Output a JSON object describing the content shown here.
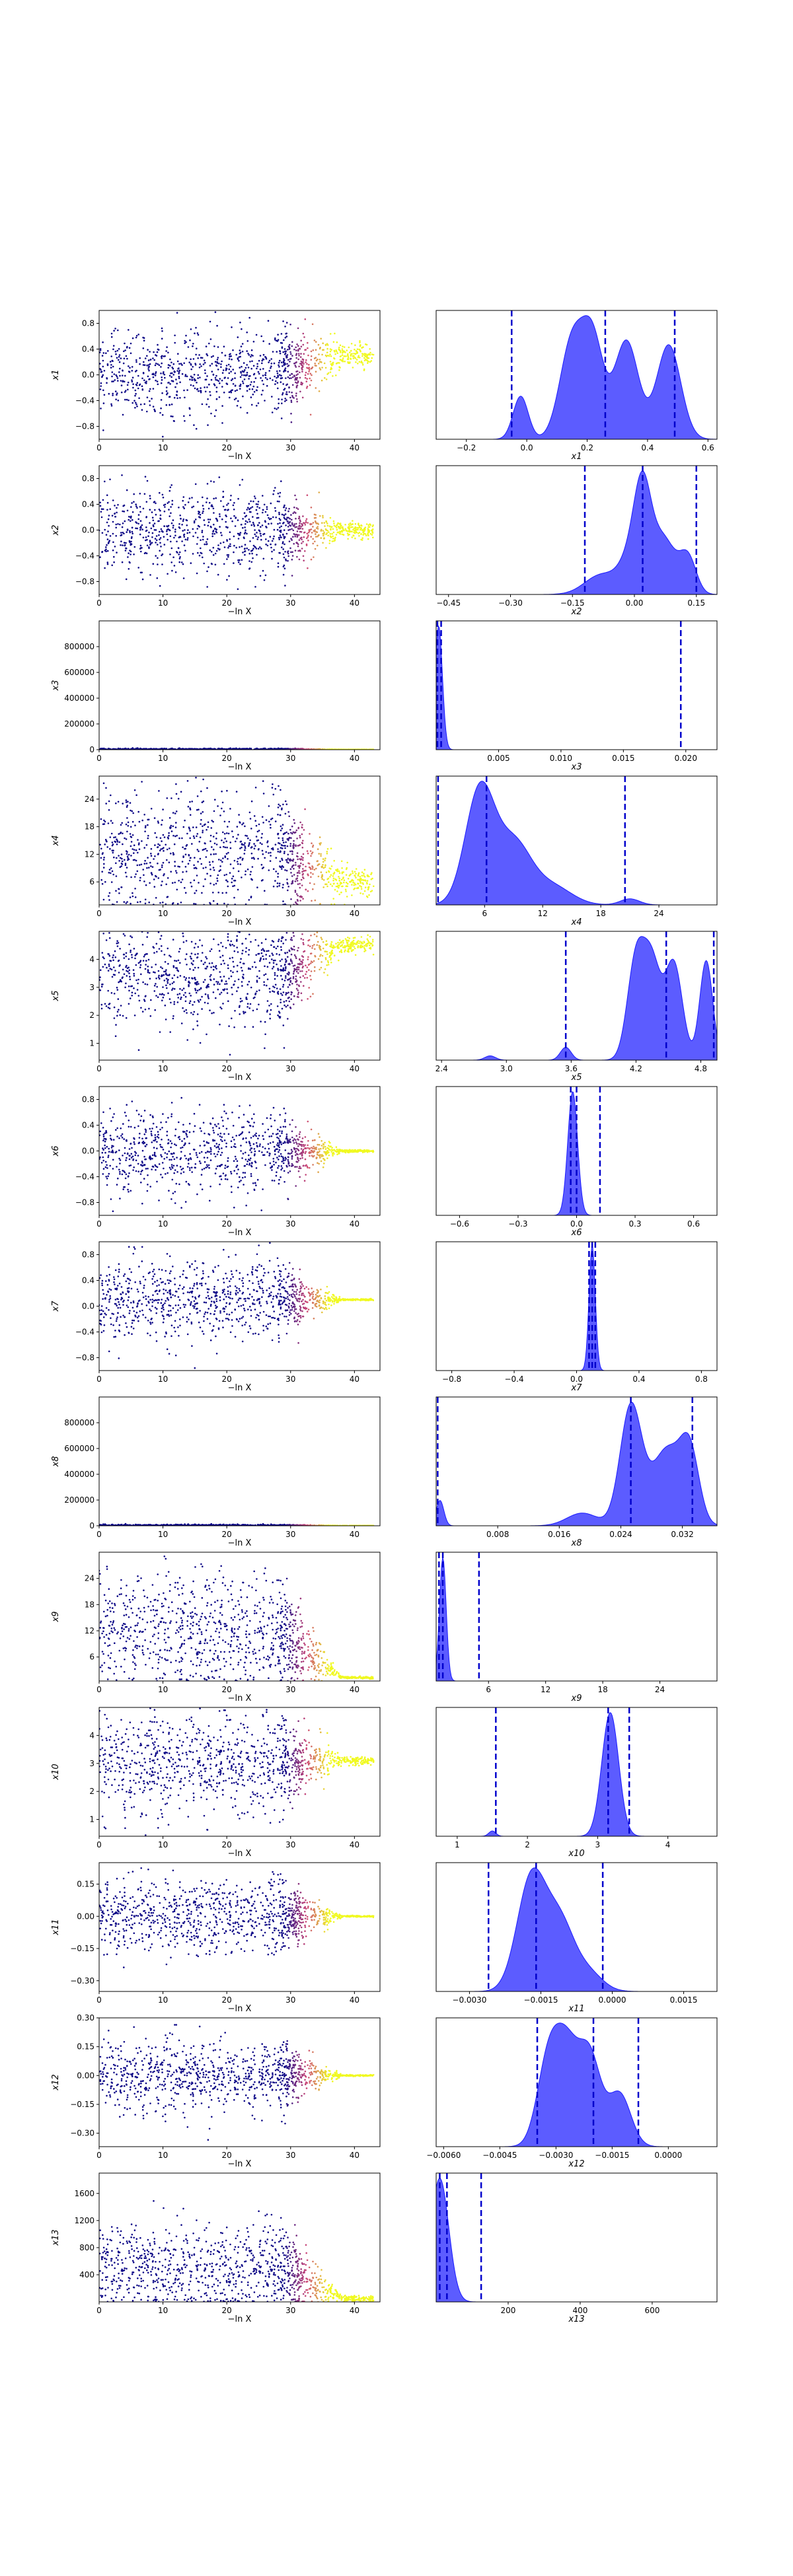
{
  "chart_data": [
    {
      "type": "scatter",
      "panel": "trace",
      "row": 1,
      "ylabel": "x1",
      "xlabel": "−ln X",
      "xlim": [
        0,
        44
      ],
      "ylim": [
        -1.0,
        1.0
      ],
      "xticks": [
        0,
        10,
        20,
        30,
        40
      ],
      "yticks": [
        -0.8,
        -0.4,
        0.0,
        0.4,
        0.8
      ],
      "ytick_labels": [
        "−0.8",
        "−0.4",
        "0.0",
        "0.4",
        "0.8"
      ],
      "profile": {
        "center": 0.05,
        "slope": 0.0,
        "spread": 0.55,
        "final": 0.3,
        "final_spread": 0.15
      }
    },
    {
      "type": "area",
      "panel": "marginal",
      "row": 1,
      "xlabel": "x1",
      "xlim": [
        -0.3,
        0.63
      ],
      "xticks": [
        -0.2,
        0.0,
        0.2,
        0.4,
        0.6
      ],
      "xtick_labels": [
        "−0.2",
        "0.0",
        "0.2",
        "0.4",
        "0.6"
      ],
      "quantiles": [
        -0.05,
        0.26,
        0.49
      ],
      "peaks": [
        {
          "x": -0.02,
          "h": 0.42,
          "w": 0.025
        },
        {
          "x": 0.15,
          "h": 0.95,
          "w": 0.04
        },
        {
          "x": 0.22,
          "h": 0.9,
          "w": 0.035
        },
        {
          "x": 0.33,
          "h": 0.96,
          "w": 0.04
        },
        {
          "x": 0.47,
          "h": 0.92,
          "w": 0.04
        }
      ]
    },
    {
      "type": "scatter",
      "panel": "trace",
      "row": 2,
      "ylabel": "x2",
      "xlabel": "−ln X",
      "xlim": [
        0,
        44
      ],
      "ylim": [
        -1.0,
        1.0
      ],
      "xticks": [
        0,
        10,
        20,
        30,
        40
      ],
      "yticks": [
        -0.8,
        -0.4,
        0.0,
        0.4,
        0.8
      ],
      "ytick_labels": [
        "−0.8",
        "−0.4",
        "0.0",
        "0.4",
        "0.8"
      ],
      "profile": {
        "center": 0.0,
        "slope": 0.0,
        "spread": 0.55,
        "final": 0.0,
        "final_spread": 0.1
      }
    },
    {
      "type": "area",
      "panel": "marginal",
      "row": 2,
      "xlabel": "x2",
      "xlim": [
        -0.48,
        0.2
      ],
      "xticks": [
        -0.45,
        -0.3,
        -0.15,
        0.0,
        0.15
      ],
      "xtick_labels": [
        "−0.45",
        "−0.30",
        "−0.15",
        "0.00",
        "0.15"
      ],
      "quantiles": [
        -0.12,
        0.02,
        0.15
      ],
      "peaks": [
        {
          "x": -0.08,
          "h": 0.25,
          "w": 0.04
        },
        {
          "x": 0.0,
          "h": 0.55,
          "w": 0.03
        },
        {
          "x": 0.02,
          "h": 0.95,
          "w": 0.02
        },
        {
          "x": 0.07,
          "h": 0.7,
          "w": 0.03
        },
        {
          "x": 0.13,
          "h": 0.45,
          "w": 0.02
        }
      ]
    },
    {
      "type": "scatter",
      "panel": "trace",
      "row": 3,
      "ylabel": "x3",
      "xlabel": "−ln X",
      "xlim": [
        0,
        44
      ],
      "ylim": [
        0,
        1000000
      ],
      "xticks": [
        0,
        10,
        20,
        30,
        40
      ],
      "yticks": [
        0,
        200000,
        400000,
        600000,
        800000
      ],
      "ytick_labels": [
        "0",
        "200000",
        "400000",
        "600000",
        "800000"
      ],
      "profile": {
        "center": 3000,
        "slope": 0.0,
        "spread": 6000,
        "final": 1000,
        "final_spread": 400
      }
    },
    {
      "type": "area",
      "panel": "marginal",
      "row": 3,
      "xlabel": "x3",
      "xlim": [
        0,
        0.0225
      ],
      "xticks": [
        0.005,
        0.01,
        0.015,
        0.02
      ],
      "xtick_labels": [
        "0.005",
        "0.010",
        "0.015",
        "0.020"
      ],
      "quantiles": [
        0.0001,
        0.0004,
        0.0196
      ],
      "peaks": [
        {
          "x": 0.0002,
          "h": 0.95,
          "w": 0.0003
        }
      ]
    },
    {
      "type": "scatter",
      "panel": "trace",
      "row": 4,
      "ylabel": "x4",
      "xlabel": "−ln X",
      "xlim": [
        0,
        44
      ],
      "ylim": [
        1,
        29
      ],
      "xticks": [
        0,
        10,
        20,
        30,
        40
      ],
      "yticks": [
        6,
        12,
        18,
        24
      ],
      "ytick_labels": [
        "6",
        "12",
        "18",
        "24"
      ],
      "profile": {
        "center": 13,
        "slope": 0.0,
        "spread": 11,
        "final": 6,
        "final_spread": 2.5
      }
    },
    {
      "type": "area",
      "panel": "marginal",
      "row": 4,
      "xlabel": "x4",
      "xlim": [
        1,
        30
      ],
      "xticks": [
        6,
        12,
        18,
        24
      ],
      "xtick_labels": [
        "6",
        "12",
        "18",
        "24"
      ],
      "quantiles": [
        1.2,
        6.2,
        20.5
      ],
      "peaks": [
        {
          "x": 5.5,
          "h": 0.93,
          "w": 1.5
        },
        {
          "x": 9,
          "h": 0.5,
          "w": 1.8
        },
        {
          "x": 13,
          "h": 0.15,
          "w": 2.0
        },
        {
          "x": 21,
          "h": 0.05,
          "w": 1.0
        }
      ]
    },
    {
      "type": "scatter",
      "panel": "trace",
      "row": 5,
      "ylabel": "x5",
      "xlabel": "−ln X",
      "xlim": [
        0,
        44
      ],
      "ylim": [
        0.4,
        5.0
      ],
      "xticks": [
        0,
        10,
        20,
        30,
        40
      ],
      "yticks": [
        1,
        2,
        3,
        4
      ],
      "ytick_labels": [
        "1",
        "2",
        "3",
        "4"
      ],
      "profile": {
        "center": 3.4,
        "slope": 0.0,
        "spread": 1.5,
        "final": 4.5,
        "final_spread": 0.25
      }
    },
    {
      "type": "area",
      "panel": "marginal",
      "row": 5,
      "xlabel": "x5",
      "xlim": [
        2.35,
        4.95
      ],
      "xticks": [
        2.4,
        3.0,
        3.6,
        4.2,
        4.8
      ],
      "xtick_labels": [
        "2.4",
        "3.0",
        "3.6",
        "4.2",
        "4.8"
      ],
      "quantiles": [
        3.55,
        4.48,
        4.92
      ],
      "peaks": [
        {
          "x": 2.85,
          "h": 0.04,
          "w": 0.05
        },
        {
          "x": 3.55,
          "h": 0.12,
          "w": 0.05
        },
        {
          "x": 4.2,
          "h": 0.93,
          "w": 0.08
        },
        {
          "x": 4.35,
          "h": 0.85,
          "w": 0.08
        },
        {
          "x": 4.55,
          "h": 0.9,
          "w": 0.08
        },
        {
          "x": 4.85,
          "h": 0.93,
          "w": 0.06
        }
      ]
    },
    {
      "type": "scatter",
      "panel": "trace",
      "row": 6,
      "ylabel": "x6",
      "xlabel": "−ln X",
      "xlim": [
        0,
        44
      ],
      "ylim": [
        -1.0,
        1.0
      ],
      "xticks": [
        0,
        10,
        20,
        30,
        40
      ],
      "yticks": [
        -0.8,
        -0.4,
        0.0,
        0.4,
        0.8
      ],
      "ytick_labels": [
        "−0.8",
        "−0.4",
        "0.0",
        "0.4",
        "0.8"
      ],
      "profile": {
        "center": 0.0,
        "slope": 0.0,
        "spread": 0.5,
        "final": 0.0,
        "final_spread": 0.015
      }
    },
    {
      "type": "area",
      "panel": "marginal",
      "row": 6,
      "xlabel": "x6",
      "xlim": [
        -0.72,
        0.72
      ],
      "xticks": [
        -0.6,
        -0.3,
        0.0,
        0.3,
        0.6
      ],
      "xtick_labels": [
        "−0.6",
        "−0.3",
        "0.0",
        "0.3",
        "0.6"
      ],
      "quantiles": [
        -0.03,
        0.0,
        0.12
      ],
      "peaks": [
        {
          "x": -0.02,
          "h": 0.94,
          "w": 0.025
        }
      ]
    },
    {
      "type": "scatter",
      "panel": "trace",
      "row": 7,
      "ylabel": "x7",
      "xlabel": "−ln X",
      "xlim": [
        0,
        44
      ],
      "ylim": [
        -1.0,
        1.0
      ],
      "xticks": [
        0,
        10,
        20,
        30,
        40
      ],
      "yticks": [
        -0.8,
        -0.4,
        0.0,
        0.4,
        0.8
      ],
      "ytick_labels": [
        "−0.8",
        "−0.4",
        "0.0",
        "0.4",
        "0.8"
      ],
      "profile": {
        "center": 0.1,
        "slope": 0.0,
        "spread": 0.5,
        "final": 0.1,
        "final_spread": 0.01
      }
    },
    {
      "type": "area",
      "panel": "marginal",
      "row": 7,
      "xlabel": "x7",
      "xlim": [
        -0.9,
        0.9
      ],
      "xticks": [
        -0.8,
        -0.4,
        0.0,
        0.4,
        0.8
      ],
      "xtick_labels": [
        "−0.8",
        "−0.4",
        "0.0",
        "0.4",
        "0.8"
      ],
      "quantiles": [
        0.08,
        0.1,
        0.12
      ],
      "peaks": [
        {
          "x": 0.1,
          "h": 0.94,
          "w": 0.02
        }
      ]
    },
    {
      "type": "scatter",
      "panel": "trace",
      "row": 8,
      "ylabel": "x8",
      "xlabel": "−ln X",
      "xlim": [
        0,
        44
      ],
      "ylim": [
        0,
        1000000
      ],
      "xticks": [
        0,
        10,
        20,
        30,
        40
      ],
      "yticks": [
        0,
        200000,
        400000,
        600000,
        800000
      ],
      "ytick_labels": [
        "0",
        "200000",
        "400000",
        "600000",
        "800000"
      ],
      "profile": {
        "center": 3000,
        "slope": 0.0,
        "spread": 6000,
        "final": 500,
        "final_spread": 200
      }
    },
    {
      "type": "area",
      "panel": "marginal",
      "row": 8,
      "xlabel": "x8",
      "xlim": [
        0,
        0.0365
      ],
      "xticks": [
        0.008,
        0.016,
        0.024,
        0.032
      ],
      "xtick_labels": [
        "0.008",
        "0.016",
        "0.024",
        "0.032"
      ],
      "quantiles": [
        0.0002,
        0.0253,
        0.0333
      ],
      "peaks": [
        {
          "x": 0.0005,
          "h": 0.2,
          "w": 0.0005
        },
        {
          "x": 0.019,
          "h": 0.1,
          "w": 0.002
        },
        {
          "x": 0.0253,
          "h": 0.93,
          "w": 0.0014
        },
        {
          "x": 0.03,
          "h": 0.6,
          "w": 0.002
        },
        {
          "x": 0.033,
          "h": 0.5,
          "w": 0.0012
        }
      ]
    },
    {
      "type": "scatter",
      "panel": "trace",
      "row": 9,
      "ylabel": "x9",
      "xlabel": "−ln X",
      "xlim": [
        0,
        44
      ],
      "ylim": [
        0.5,
        30
      ],
      "xticks": [
        0,
        10,
        20,
        30,
        40
      ],
      "yticks": [
        6,
        12,
        18,
        24
      ],
      "ytick_labels": [
        "6",
        "12",
        "18",
        "24"
      ],
      "profile": {
        "center": 12,
        "slope": 0.0,
        "spread": 11,
        "final": 1.3,
        "final_spread": 0.2
      }
    },
    {
      "type": "area",
      "panel": "marginal",
      "row": 9,
      "xlabel": "x9",
      "xlim": [
        0.5,
        30
      ],
      "xticks": [
        6,
        12,
        18,
        24
      ],
      "xtick_labels": [
        "6",
        "12",
        "18",
        "24"
      ],
      "quantiles": [
        0.8,
        1.2,
        5.0
      ],
      "peaks": [
        {
          "x": 1.2,
          "h": 0.93,
          "w": 0.35
        }
      ]
    },
    {
      "type": "scatter",
      "panel": "trace",
      "row": 10,
      "ylabel": "x10",
      "xlabel": "−ln X",
      "xlim": [
        0,
        44
      ],
      "ylim": [
        0.4,
        5.0
      ],
      "xticks": [
        0,
        10,
        20,
        30,
        40
      ],
      "yticks": [
        1,
        2,
        3,
        4
      ],
      "ytick_labels": [
        "1",
        "2",
        "3",
        "4"
      ],
      "profile": {
        "center": 3.0,
        "slope": 0.0,
        "spread": 1.6,
        "final": 3.1,
        "final_spread": 0.1
      }
    },
    {
      "type": "area",
      "panel": "marginal",
      "row": 10,
      "xlabel": "x10",
      "xlim": [
        0.7,
        4.7
      ],
      "xticks": [
        1,
        2,
        3,
        4
      ],
      "xtick_labels": [
        "1",
        "2",
        "3",
        "4"
      ],
      "quantiles": [
        1.55,
        3.15,
        3.45
      ],
      "peaks": [
        {
          "x": 1.5,
          "h": 0.04,
          "w": 0.05
        },
        {
          "x": 3.18,
          "h": 0.94,
          "w": 0.12
        }
      ]
    },
    {
      "type": "scatter",
      "panel": "trace",
      "row": 11,
      "ylabel": "x11",
      "xlabel": "−ln X",
      "xlim": [
        0,
        44
      ],
      "ylim": [
        -0.35,
        0.25
      ],
      "xticks": [
        0,
        10,
        20,
        30,
        40
      ],
      "yticks": [
        -0.3,
        -0.15,
        0.0,
        0.15
      ],
      "ytick_labels": [
        "−0.30",
        "−0.15",
        "0.00",
        "0.15"
      ],
      "profile": {
        "center": 0.0,
        "slope": 0.0,
        "spread": 0.15,
        "final": 0.0,
        "final_spread": 0.003
      }
    },
    {
      "type": "area",
      "panel": "marginal",
      "row": 11,
      "xlabel": "x11",
      "xlim": [
        -0.0037,
        0.0022
      ],
      "xticks": [
        -0.003,
        -0.0015,
        0.0,
        0.0015
      ],
      "xtick_labels": [
        "−0.0030",
        "−0.0015",
        "0.0000",
        "0.0015"
      ],
      "quantiles": [
        -0.0026,
        -0.0016,
        -0.0002
      ],
      "peaks": [
        {
          "x": -0.0017,
          "h": 0.94,
          "w": 0.0003
        },
        {
          "x": -0.0011,
          "h": 0.55,
          "w": 0.0003
        },
        {
          "x": -0.0005,
          "h": 0.15,
          "w": 0.0003
        }
      ]
    },
    {
      "type": "scatter",
      "panel": "trace",
      "row": 12,
      "ylabel": "x12",
      "xlabel": "−ln X",
      "xlim": [
        0,
        44
      ],
      "ylim": [
        -0.37,
        0.3
      ],
      "xticks": [
        0,
        10,
        20,
        30,
        40
      ],
      "yticks": [
        -0.3,
        -0.15,
        0.0,
        0.15,
        0.3
      ],
      "ytick_labels": [
        "−0.30",
        "−0.15",
        "0.00",
        "0.15",
        "0.30"
      ],
      "profile": {
        "center": 0.0,
        "slope": 0.0,
        "spread": 0.15,
        "final": 0.0,
        "final_spread": 0.003
      }
    },
    {
      "type": "area",
      "panel": "marginal",
      "row": 12,
      "xlabel": "x12",
      "xlim": [
        -0.0062,
        0.0013
      ],
      "xticks": [
        -0.006,
        -0.0045,
        -0.003,
        -0.0015,
        0.0
      ],
      "xtick_labels": [
        "−0.0060",
        "−0.0045",
        "−0.0030",
        "−0.0015",
        "0.0000"
      ],
      "quantiles": [
        -0.0035,
        -0.002,
        -0.0008
      ],
      "peaks": [
        {
          "x": -0.0032,
          "h": 0.9,
          "w": 0.0003
        },
        {
          "x": -0.0027,
          "h": 0.9,
          "w": 0.0003
        },
        {
          "x": -0.0021,
          "h": 0.93,
          "w": 0.0003
        },
        {
          "x": -0.0013,
          "h": 0.55,
          "w": 0.0003
        }
      ]
    },
    {
      "type": "scatter",
      "panel": "trace",
      "row": 13,
      "ylabel": "x13",
      "xlabel": "−ln X",
      "xlim": [
        0,
        44
      ],
      "ylim": [
        0,
        1900
      ],
      "xticks": [
        0,
        10,
        20,
        30,
        40
      ],
      "yticks": [
        400,
        800,
        1200,
        1600
      ],
      "ytick_labels": [
        "400",
        "800",
        "1200",
        "1600"
      ],
      "profile": {
        "center": 500,
        "slope": 0.0,
        "spread": 550,
        "final": 50,
        "final_spread": 40
      }
    },
    {
      "type": "area",
      "panel": "marginal",
      "row": 13,
      "xlabel": "x13",
      "xlim": [
        0,
        780
      ],
      "xticks": [
        200,
        400,
        600
      ],
      "xtick_labels": [
        "200",
        "400",
        "600"
      ],
      "quantiles": [
        10,
        30,
        125
      ],
      "peaks": [
        {
          "x": 10,
          "h": 0.95,
          "w": 25
        }
      ]
    }
  ],
  "labels": {
    "trace_xlabel": "−ln X",
    "marginal_xlabels": [
      "x1",
      "x2",
      "x3",
      "x4",
      "x5",
      "x6",
      "x7",
      "x8",
      "x9",
      "x10",
      "x11",
      "x12",
      "x13"
    ],
    "trace_ylabels": [
      "x1",
      "x2",
      "x3",
      "x4",
      "x5",
      "x6",
      "x7",
      "x8",
      "x9",
      "x10",
      "x11",
      "x12",
      "x13"
    ]
  },
  "colors": {
    "scatter_low": "#0d0887",
    "scatter_mid": "#cc4778",
    "scatter_high": "#f0f921",
    "kde_fill": "#4040ff",
    "kde_line": "#1a1aff",
    "quantile_line": "#0000cc"
  }
}
